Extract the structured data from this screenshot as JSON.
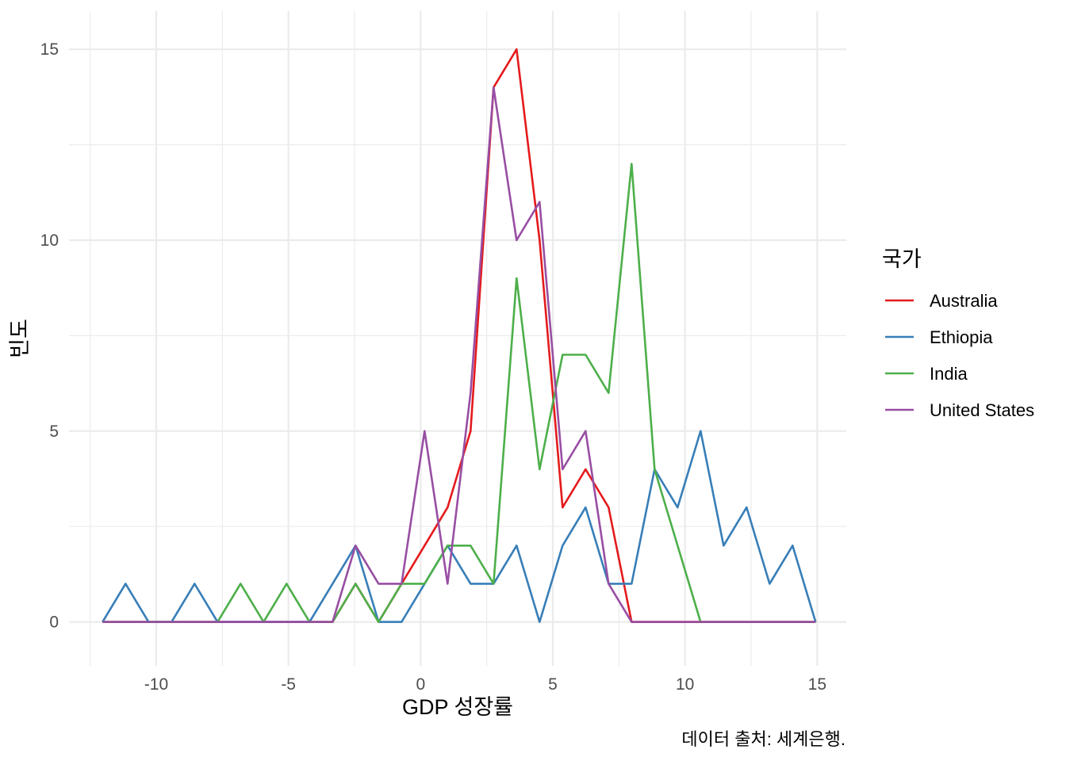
{
  "chart_data": {
    "type": "line",
    "xlabel": "GDP 성장률",
    "ylabel": "빈도",
    "caption": "데이터 출처: 세계은행.",
    "legend_title": "국가",
    "legend_position": "right",
    "grid": true,
    "xlim": [
      -13.3,
      16.1
    ],
    "ylim": [
      -1.15,
      16.0
    ],
    "x_ticks": [
      -10,
      -5,
      0,
      5,
      10,
      15
    ],
    "y_ticks": [
      0,
      5,
      10,
      15
    ],
    "x_tick_labels": [
      "-10",
      "-5",
      "0",
      "5",
      "10",
      "15"
    ],
    "y_tick_labels": [
      "0",
      "5",
      "10",
      "15"
    ],
    "x": [
      -12.03,
      -11.16,
      -10.29,
      -9.42,
      -8.55,
      -7.68,
      -6.81,
      -5.94,
      -5.07,
      -4.2,
      -3.33,
      -2.46,
      -1.59,
      -0.72,
      0.15,
      1.02,
      1.89,
      2.76,
      3.63,
      4.5,
      5.37,
      6.24,
      7.11,
      7.98,
      8.85,
      9.72,
      10.59,
      11.46,
      12.33,
      13.2,
      14.07,
      14.94
    ],
    "series": [
      {
        "name": "Australia",
        "color": "#E41A1C",
        "values": [
          0,
          0,
          0,
          0,
          0,
          0,
          0,
          0,
          0,
          0,
          0,
          1,
          0,
          1,
          2,
          3,
          5,
          14,
          15,
          10,
          3,
          4,
          3,
          0,
          0,
          0,
          0,
          0,
          0,
          0,
          0,
          0
        ]
      },
      {
        "name": "Ethiopia",
        "color": "#377EB8",
        "values": [
          0,
          1,
          0,
          0,
          1,
          0,
          0,
          0,
          0,
          0,
          1,
          2,
          0,
          0,
          1,
          2,
          1,
          1,
          2,
          0,
          2,
          3,
          1,
          1,
          4,
          3,
          5,
          2,
          3,
          1,
          2,
          0
        ]
      },
      {
        "name": "India",
        "color": "#4DAF4A",
        "values": [
          0,
          0,
          0,
          0,
          0,
          0,
          1,
          0,
          1,
          0,
          0,
          1,
          0,
          1,
          1,
          2,
          2,
          1,
          9,
          4,
          7,
          7,
          6,
          12,
          4,
          2,
          0,
          0,
          0,
          0,
          0,
          0
        ]
      },
      {
        "name": "United States",
        "color": "#984EA3",
        "values": [
          0,
          0,
          0,
          0,
          0,
          0,
          0,
          0,
          0,
          0,
          0,
          2,
          1,
          1,
          5,
          1,
          6,
          14,
          10,
          11,
          4,
          5,
          1,
          0,
          0,
          0,
          0,
          0,
          0,
          0,
          0,
          0
        ]
      }
    ]
  }
}
